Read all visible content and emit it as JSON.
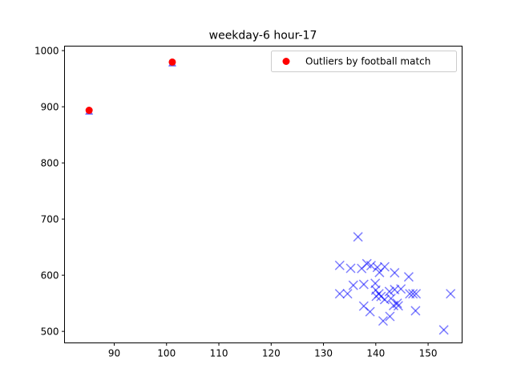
{
  "chart_data": {
    "type": "scatter",
    "title": "weekday-6 hour-17",
    "xlabel": "",
    "ylabel": "",
    "xlim": [
      80.5,
      156.5
    ],
    "ylim": [
      479.5,
      1008
    ],
    "xticks": [
      90,
      100,
      110,
      120,
      130,
      140,
      150
    ],
    "yticks": [
      500,
      600,
      700,
      800,
      900,
      1000
    ],
    "grid": false,
    "legend_position": "top-right",
    "colors": {
      "cross": "#0000ff",
      "outlier": "#ff0000",
      "outlier_triangle": "#0000ff"
    },
    "series": [
      {
        "marker": "x",
        "points": [
          [
            133.1,
            617.5
          ],
          [
            135.2,
            612.3
          ],
          [
            136.6,
            668.3
          ],
          [
            137.3,
            612.0
          ],
          [
            137.7,
            583.7
          ],
          [
            138.3,
            620.5
          ],
          [
            139.1,
            617.2
          ],
          [
            140.3,
            614.0
          ],
          [
            140.7,
            604.9
          ],
          [
            141.7,
            615.0
          ],
          [
            143.6,
            604.4
          ],
          [
            146.3,
            597.1
          ],
          [
            133.1,
            567.0
          ],
          [
            134.6,
            567.0
          ],
          [
            135.7,
            582.1
          ],
          [
            138.9,
            535.0
          ],
          [
            137.7,
            545.0
          ],
          [
            139.9,
            585.5
          ],
          [
            140.0,
            573.5
          ],
          [
            140.1,
            562.5
          ],
          [
            141.7,
            556.7
          ],
          [
            141.0,
            562.2
          ],
          [
            140.6,
            567.0
          ],
          [
            142.6,
            571.0
          ],
          [
            143.6,
            574.4
          ],
          [
            144.8,
            575.6
          ],
          [
            142.9,
            558.6
          ],
          [
            144.1,
            550.0
          ],
          [
            144.3,
            545.6
          ],
          [
            142.7,
            526.6
          ],
          [
            141.4,
            518.6
          ],
          [
            146.5,
            567.0
          ],
          [
            147.1,
            567.0
          ],
          [
            147.7,
            567.0
          ],
          [
            147.6,
            536.7
          ],
          [
            153.0,
            502.6
          ],
          [
            154.3,
            567.0
          ],
          [
            143.4,
            546.0
          ]
        ]
      },
      {
        "name": "Outliers by football match",
        "marker": "circle",
        "points": [
          [
            85.2,
            893.7
          ],
          [
            101.1,
            979.6
          ]
        ]
      },
      {
        "marker": "triangle",
        "points": [
          [
            85.2,
            891.0
          ],
          [
            101.1,
            977.0
          ]
        ]
      }
    ]
  }
}
